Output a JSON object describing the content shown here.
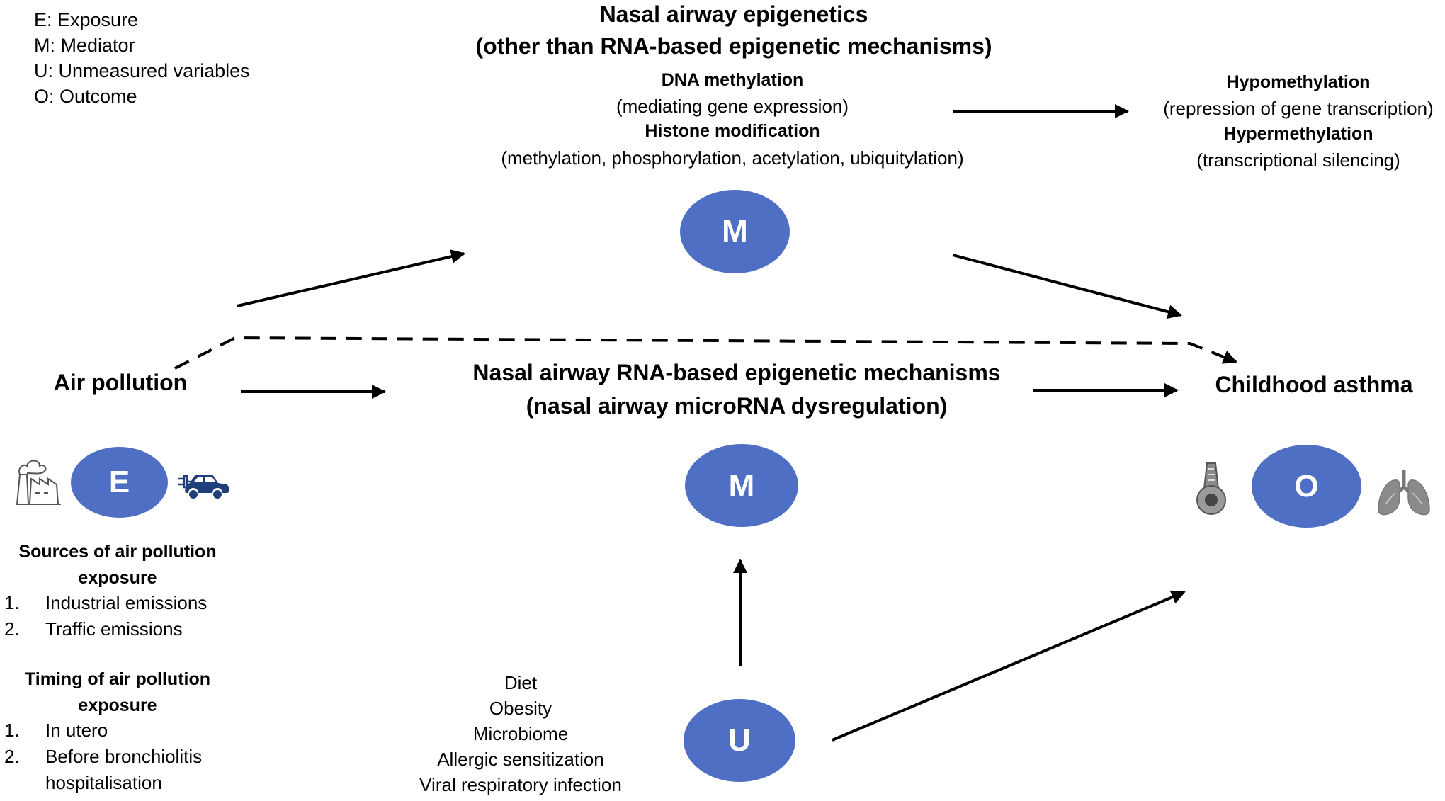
{
  "legend": [
    "E: Exposure",
    "M: Mediator",
    "U: Unmeasured variables",
    "O: Outcome"
  ],
  "top_mediator": {
    "title_1": "Nasal airway epigenetics",
    "title_2": "(other than RNA-based epigenetic mechanisms)",
    "dna_label": "DNA methylation",
    "dna_desc": "(mediating gene expression)",
    "histone_label": "Histone modification",
    "histone_desc": "(methylation, phosphorylation, acetylation, ubiquitylation)",
    "node_label": "M"
  },
  "methylation_effects": {
    "hypo_label": "Hypomethylation",
    "hypo_desc": "(repression of gene transcription)",
    "hyper_label": "Hypermethylation",
    "hyper_desc": "(transcriptional silencing)"
  },
  "exposure": {
    "title": "Air pollution",
    "node_label": "E",
    "icons": [
      "factory-icon",
      "electric-car-icon"
    ]
  },
  "middle_mediator": {
    "title_1": "Nasal airway RNA-based epigenetic mechanisms",
    "title_2": "(nasal airway microRNA dysregulation)",
    "node_label": "M"
  },
  "outcome": {
    "title": "Childhood asthma",
    "node_label": "O",
    "icons": [
      "inhaler-icon",
      "lungs-icon"
    ]
  },
  "sources": {
    "heading_1": "Sources of air pollution",
    "heading_2": "exposure",
    "items": [
      {
        "num": "1.",
        "text": "Industrial emissions"
      },
      {
        "num": "2.",
        "text": "Traffic emissions"
      }
    ]
  },
  "timing": {
    "heading_1": "Timing of air pollution",
    "heading_2": "exposure",
    "items": [
      {
        "num": "1.",
        "text": "In utero"
      },
      {
        "num": "2.",
        "text": "Before bronchiolitis"
      },
      {
        "num": "",
        "text": "hospitalisation"
      }
    ]
  },
  "unmeasured": {
    "node_label": "U",
    "variables": [
      "Diet",
      "Obesity",
      "Microbiome",
      "Allergic sensitization",
      "Viral respiratory infection"
    ]
  },
  "colors": {
    "node_fill": "#4e6fc4",
    "arrow": "#000000",
    "icon_gray": "#8a8a8a",
    "car_blue": "#1f3f7a"
  }
}
